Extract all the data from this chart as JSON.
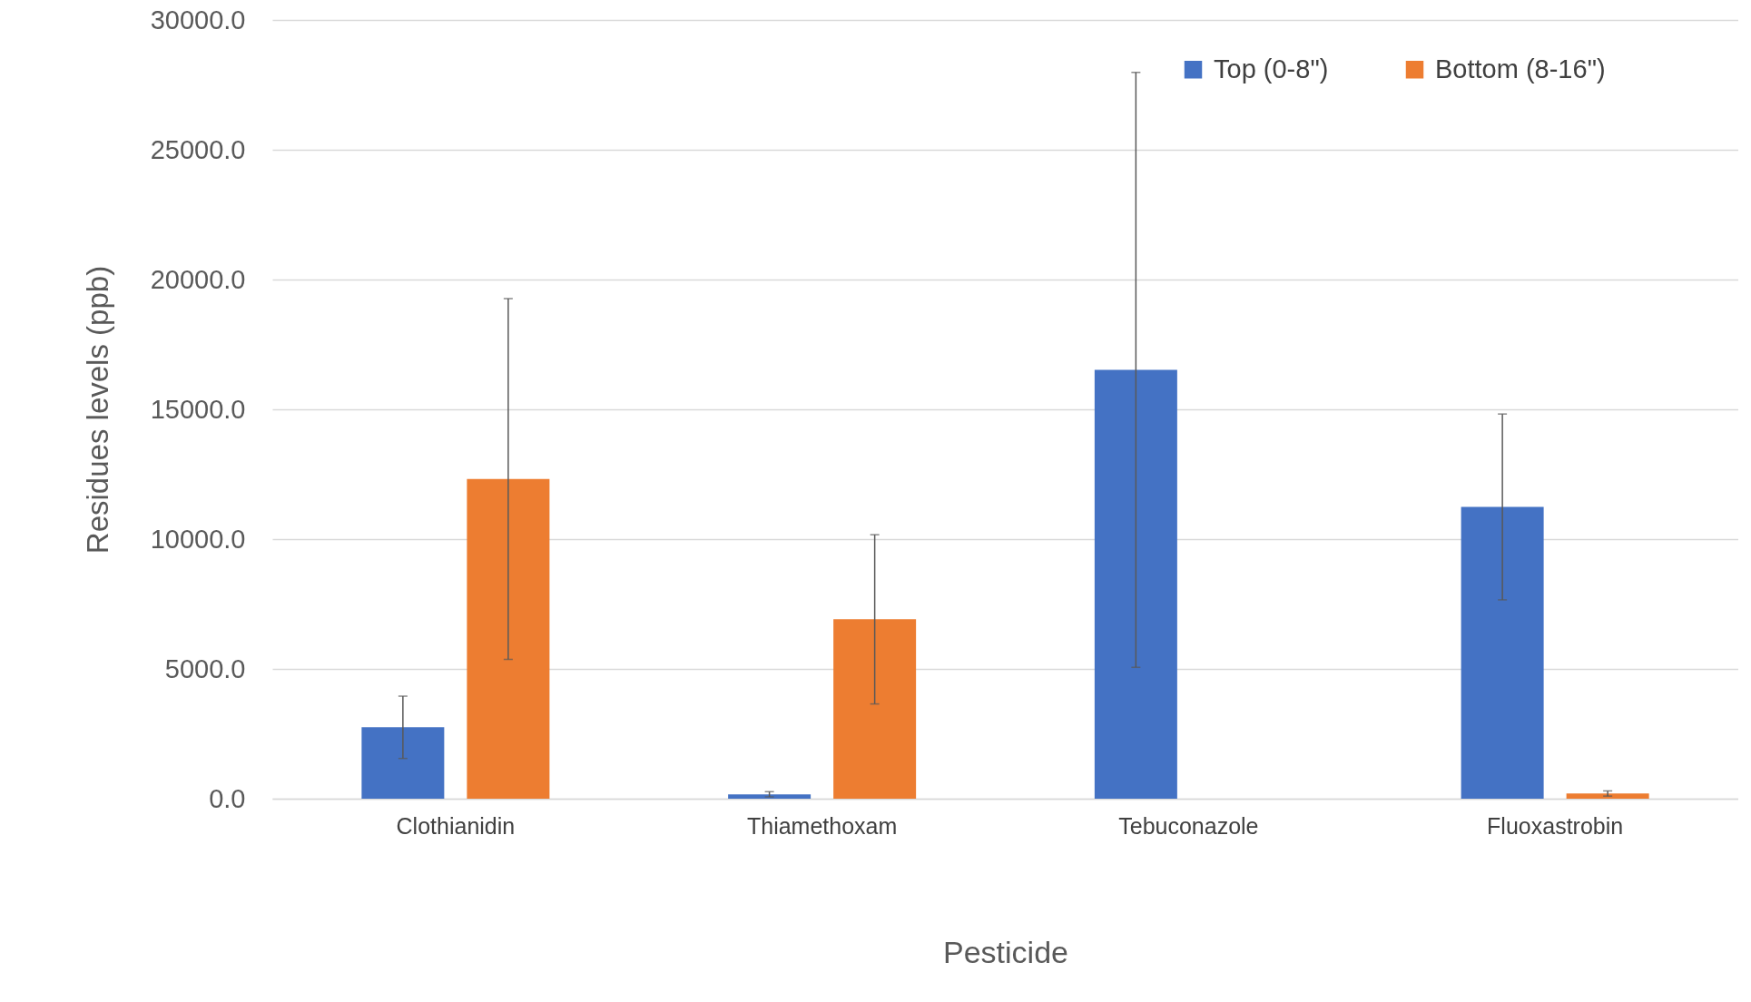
{
  "chart_data": {
    "type": "bar",
    "xlabel": "Pesticide",
    "ylabel": "Residues levels (ppb)",
    "categories": [
      "Clothianidin",
      "Thiamethoxam",
      "Tebuconazole",
      "Fluoxastrobin"
    ],
    "series": [
      {
        "name": "Top (0-8\")",
        "color": "#4472c4",
        "values": [
          2750,
          170,
          16520,
          11240
        ],
        "errors": [
          1200,
          100,
          11460,
          3580
        ]
      },
      {
        "name": "Bottom (8-16\")",
        "color": "#ed7d31",
        "values": [
          12320,
          6910,
          null,
          200
        ],
        "errors": [
          6950,
          3260,
          null,
          100
        ]
      }
    ],
    "ylim": [
      0,
      30000
    ],
    "yticks": [
      {
        "value": 0,
        "label": "0.0"
      },
      {
        "value": 5000,
        "label": "5000.0"
      },
      {
        "value": 10000,
        "label": "10000.0"
      },
      {
        "value": 15000,
        "label": "15000.0"
      },
      {
        "value": 20000,
        "label": "20000.0"
      },
      {
        "value": 25000,
        "label": "25000.0"
      },
      {
        "value": 30000,
        "label": "30000.0"
      }
    ],
    "grid": "y",
    "legend": "top right"
  }
}
